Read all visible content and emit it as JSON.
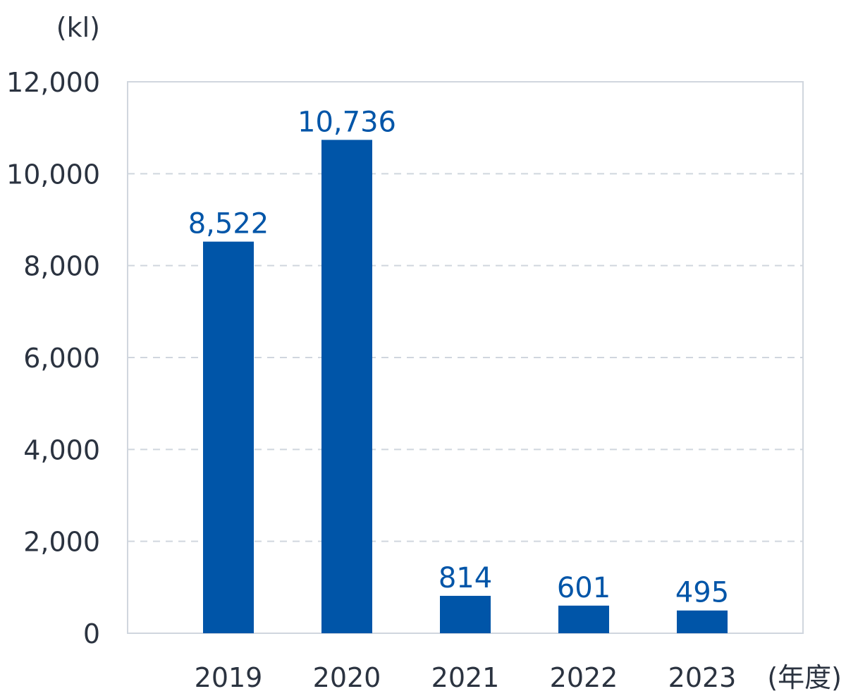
{
  "chart_data": {
    "type": "bar",
    "categories": [
      "2019",
      "2020",
      "2021",
      "2022",
      "2023"
    ],
    "values": [
      8522,
      10736,
      814,
      601,
      495
    ],
    "data_labels": [
      "8,522",
      "10,736",
      "814",
      "601",
      "495"
    ],
    "ylabel": "(kl)",
    "xlabel": "(年度)",
    "ylim": [
      0,
      12000
    ],
    "yticks": [
      0,
      2000,
      4000,
      6000,
      8000,
      10000,
      12000
    ],
    "ytick_labels": [
      "0",
      "2,000",
      "4,000",
      "6,000",
      "8,000",
      "10,000",
      "12,000"
    ],
    "grid": true,
    "grid_style": "dashed",
    "bar_color": "#0055a8",
    "label_color": "#0055a8",
    "frame_color": "#d0d6de",
    "grid_color": "#d0d6de",
    "text_color": "#2b3340"
  }
}
